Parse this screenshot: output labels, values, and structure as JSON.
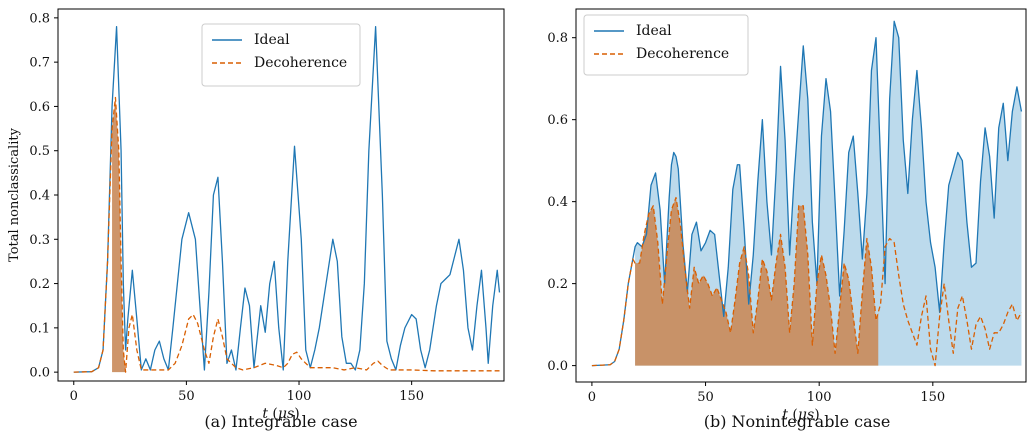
{
  "chart_data": [
    {
      "type": "line",
      "subplot": "(a)",
      "caption": "(a) Integrable case",
      "xlabel": "t (μs)",
      "ylabel": "Total nonclassicality",
      "xlim": [
        -7,
        191
      ],
      "ylim": [
        -0.02,
        0.82
      ],
      "xticks": [
        0,
        50,
        100,
        150
      ],
      "yticks": [
        0.0,
        0.1,
        0.2,
        0.3,
        0.4,
        0.5,
        0.6,
        0.7,
        0.8
      ],
      "legend": {
        "placement": "top-center",
        "entries": [
          "Ideal",
          "Decoherence"
        ]
      },
      "fills": [
        {
          "series": "Decoherence",
          "x_range": [
            17,
            23
          ]
        }
      ],
      "series": [
        {
          "name": "Ideal",
          "color": "#1f77b4",
          "style": "solid",
          "x": [
            0,
            8,
            11,
            13,
            15,
            17,
            19,
            21,
            22,
            23,
            24,
            26,
            28,
            30,
            32,
            34,
            36,
            38,
            40,
            42,
            44,
            46,
            48,
            51,
            54,
            56,
            58,
            60,
            62,
            64,
            66,
            68,
            70,
            72,
            74,
            76,
            78,
            80,
            83,
            85,
            87,
            89,
            91,
            93,
            95,
            98,
            101,
            103,
            105,
            107,
            109,
            112,
            115,
            117,
            119,
            121,
            123,
            125,
            127,
            129,
            131,
            134,
            137,
            139,
            141,
            143,
            145,
            147,
            150,
            152,
            154,
            156,
            158,
            161,
            163,
            165,
            167,
            169,
            171,
            173,
            175,
            177,
            179,
            181,
            183,
            184,
            186,
            188,
            189
          ],
          "y": [
            0.0,
            0.001,
            0.01,
            0.05,
            0.25,
            0.6,
            0.78,
            0.5,
            0.2,
            0.05,
            0.12,
            0.23,
            0.12,
            0.005,
            0.03,
            0.005,
            0.05,
            0.07,
            0.03,
            0.005,
            0.1,
            0.2,
            0.3,
            0.36,
            0.3,
            0.15,
            0.005,
            0.18,
            0.4,
            0.44,
            0.25,
            0.02,
            0.05,
            0.005,
            0.1,
            0.19,
            0.15,
            0.01,
            0.15,
            0.09,
            0.2,
            0.25,
            0.1,
            0.005,
            0.25,
            0.51,
            0.3,
            0.05,
            0.01,
            0.05,
            0.1,
            0.2,
            0.3,
            0.25,
            0.08,
            0.02,
            0.02,
            0.005,
            0.05,
            0.2,
            0.5,
            0.78,
            0.4,
            0.07,
            0.03,
            0.005,
            0.06,
            0.1,
            0.13,
            0.12,
            0.05,
            0.01,
            0.05,
            0.15,
            0.2,
            0.21,
            0.22,
            0.26,
            0.3,
            0.23,
            0.1,
            0.05,
            0.15,
            0.23,
            0.1,
            0.02,
            0.15,
            0.23,
            0.18
          ]
        },
        {
          "name": "Decoherence",
          "color": "#d95f02",
          "style": "dashed",
          "x": [
            0,
            8,
            11,
            13,
            15,
            17,
            18.5,
            20,
            21,
            22,
            23,
            24.5,
            26,
            28,
            30,
            35,
            40,
            42,
            45,
            48,
            51,
            53,
            55,
            58,
            60,
            62,
            64,
            66,
            68,
            72,
            75,
            80,
            85,
            90,
            93,
            95,
            97,
            99,
            101,
            105,
            110,
            115,
            120,
            125,
            130,
            133,
            135,
            137,
            140,
            150,
            160,
            170,
            180,
            189
          ],
          "y": [
            0.0,
            0.001,
            0.01,
            0.05,
            0.25,
            0.55,
            0.62,
            0.5,
            0.25,
            0.05,
            0.0,
            0.1,
            0.13,
            0.05,
            0.005,
            0.005,
            0.005,
            0.005,
            0.02,
            0.06,
            0.12,
            0.13,
            0.11,
            0.05,
            0.02,
            0.08,
            0.12,
            0.08,
            0.03,
            0.01,
            0.005,
            0.01,
            0.02,
            0.015,
            0.01,
            0.02,
            0.04,
            0.045,
            0.03,
            0.01,
            0.01,
            0.01,
            0.005,
            0.01,
            0.005,
            0.02,
            0.025,
            0.015,
            0.005,
            0.005,
            0.003,
            0.003,
            0.003,
            0.003
          ]
        }
      ]
    },
    {
      "type": "line",
      "subplot": "(b)",
      "caption": "(b) Nonintegrable case",
      "xlabel": "t (μs)",
      "ylabel": "",
      "xlim": [
        -7,
        191
      ],
      "ylim": [
        -0.04,
        0.87
      ],
      "xticks": [
        0,
        50,
        100,
        150
      ],
      "yticks": [
        0.0,
        0.2,
        0.4,
        0.6,
        0.8
      ],
      "legend": {
        "placement": "top-left",
        "entries": [
          "Ideal",
          "Decoherence"
        ]
      },
      "fills": [
        {
          "series": "Ideal",
          "x_range": [
            19,
            189
          ]
        },
        {
          "series": "Decoherence",
          "x_range": [
            19,
            126
          ]
        }
      ],
      "series": [
        {
          "name": "Ideal",
          "color": "#1f77b4",
          "style": "solid",
          "x": [
            0,
            8,
            10,
            12,
            14,
            16,
            18,
            19,
            20,
            22,
            24,
            26,
            28,
            30,
            32,
            34,
            35,
            36,
            37,
            38,
            40,
            42,
            44,
            46,
            48,
            50,
            52,
            54,
            56,
            58,
            60,
            62,
            64,
            65,
            67,
            69,
            71,
            73,
            75,
            77,
            79,
            81,
            83,
            85,
            87,
            89,
            91,
            93,
            95,
            97,
            99,
            101,
            103,
            105,
            107,
            109,
            111,
            113,
            115,
            117,
            119,
            121,
            123,
            125,
            127,
            129,
            131,
            133,
            135,
            137,
            139,
            141,
            143,
            145,
            147,
            149,
            151,
            153,
            155,
            157,
            159,
            161,
            163,
            165,
            167,
            169,
            171,
            173,
            175,
            177,
            179,
            181,
            183,
            185,
            187,
            189
          ],
          "y": [
            0.0,
            0.002,
            0.01,
            0.04,
            0.11,
            0.2,
            0.26,
            0.29,
            0.3,
            0.29,
            0.32,
            0.44,
            0.47,
            0.38,
            0.2,
            0.41,
            0.49,
            0.52,
            0.51,
            0.48,
            0.3,
            0.18,
            0.32,
            0.35,
            0.28,
            0.3,
            0.33,
            0.32,
            0.22,
            0.12,
            0.24,
            0.43,
            0.49,
            0.49,
            0.33,
            0.15,
            0.27,
            0.45,
            0.6,
            0.4,
            0.27,
            0.47,
            0.73,
            0.55,
            0.27,
            0.46,
            0.62,
            0.78,
            0.65,
            0.35,
            0.2,
            0.56,
            0.7,
            0.62,
            0.4,
            0.17,
            0.33,
            0.52,
            0.56,
            0.42,
            0.26,
            0.42,
            0.72,
            0.8,
            0.5,
            0.2,
            0.65,
            0.84,
            0.8,
            0.55,
            0.42,
            0.6,
            0.72,
            0.58,
            0.4,
            0.3,
            0.24,
            0.13,
            0.3,
            0.44,
            0.48,
            0.52,
            0.5,
            0.35,
            0.24,
            0.25,
            0.45,
            0.58,
            0.51,
            0.36,
            0.58,
            0.64,
            0.5,
            0.62,
            0.68,
            0.62
          ]
        },
        {
          "name": "Decoherence",
          "color": "#d95f02",
          "style": "dashed",
          "x": [
            0,
            8,
            10,
            12,
            14,
            16,
            18,
            19,
            21,
            23,
            25,
            27,
            29,
            31,
            33,
            35,
            37,
            39,
            41,
            43,
            45,
            47,
            49,
            51,
            53,
            55,
            57,
            59,
            61,
            63,
            65,
            67,
            69,
            71,
            73,
            75,
            77,
            79,
            81,
            83,
            85,
            87,
            89,
            91,
            93,
            95,
            97,
            99,
            101,
            103,
            105,
            107,
            109,
            111,
            113,
            115,
            117,
            119,
            121,
            123,
            125,
            127,
            129,
            131,
            133,
            135,
            137,
            139,
            141,
            143,
            145,
            147,
            149,
            151,
            153,
            155,
            157,
            159,
            161,
            163,
            165,
            167,
            169,
            171,
            173,
            175,
            177,
            179,
            181,
            183,
            185,
            187,
            189
          ],
          "y": [
            0.0,
            0.002,
            0.01,
            0.04,
            0.11,
            0.2,
            0.26,
            0.25,
            0.25,
            0.32,
            0.37,
            0.39,
            0.3,
            0.15,
            0.27,
            0.38,
            0.41,
            0.34,
            0.23,
            0.14,
            0.24,
            0.2,
            0.22,
            0.2,
            0.17,
            0.19,
            0.16,
            0.13,
            0.08,
            0.16,
            0.25,
            0.29,
            0.22,
            0.08,
            0.16,
            0.26,
            0.23,
            0.16,
            0.25,
            0.32,
            0.24,
            0.08,
            0.2,
            0.39,
            0.39,
            0.27,
            0.05,
            0.2,
            0.27,
            0.22,
            0.14,
            0.03,
            0.14,
            0.25,
            0.21,
            0.12,
            0.03,
            0.18,
            0.31,
            0.24,
            0.11,
            0.15,
            0.29,
            0.31,
            0.3,
            0.22,
            0.15,
            0.11,
            0.08,
            0.05,
            0.12,
            0.17,
            0.04,
            0.0,
            0.12,
            0.2,
            0.11,
            0.03,
            0.14,
            0.17,
            0.11,
            0.04,
            0.1,
            0.12,
            0.09,
            0.04,
            0.08,
            0.08,
            0.1,
            0.13,
            0.15,
            0.11,
            0.13
          ]
        }
      ]
    }
  ]
}
